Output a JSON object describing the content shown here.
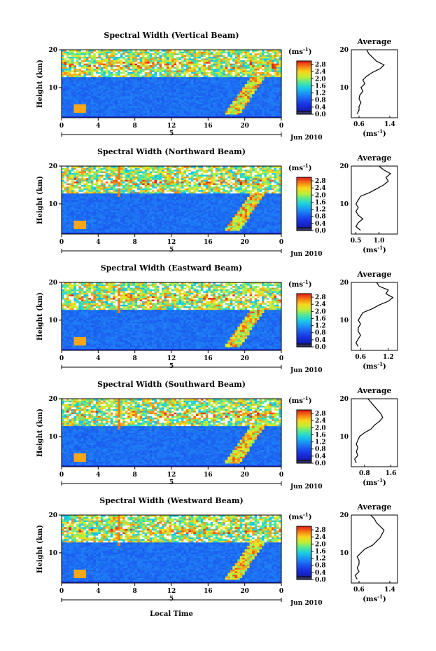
{
  "figure": {
    "xlabel": "Local Time",
    "date_label": "Jun 2010",
    "x_tick_labels": [
      "0",
      "4",
      "8",
      "12",
      "16",
      "20",
      "0"
    ],
    "bottom_axis_label": "5",
    "y_tick_labels": [
      "20",
      "10"
    ],
    "ylabel": "Height (km)",
    "colorbar_unit": "(ms",
    "colorbar_unit_exp": "-1",
    "colorbar_unit_close": ")",
    "colorbar_ticks": [
      "2.8",
      "2.4",
      "2.0",
      "1.6",
      "1.2",
      "0.8",
      "0.4",
      "0.0"
    ],
    "profile_title": "Average",
    "profile_unit": "(ms",
    "profile_unit_exp": "-1",
    "profile_unit_close": ")"
  },
  "chart_data": [
    {
      "type": "heatmap",
      "title": "Spectral Width (Vertical Beam)",
      "xlabel": "Local Time",
      "ylabel": "Height (km)",
      "xlim": [
        0,
        24
      ],
      "ylim": [
        2,
        20
      ],
      "colorbar": {
        "label": "(ms-1)",
        "range": [
          0.0,
          3.0
        ]
      },
      "profile": {
        "title": "Average",
        "xlabel": "(ms-1)",
        "xlim": [
          0.4,
          1.6
        ],
        "xticks": [
          "0.6",
          "1.4"
        ],
        "height_km": [
          3,
          4,
          5,
          6,
          7,
          8,
          9,
          10,
          11,
          12,
          13,
          14,
          15,
          16,
          17,
          18,
          19,
          20
        ],
        "values": [
          0.55,
          0.6,
          0.6,
          0.65,
          0.6,
          0.62,
          0.7,
          0.65,
          0.75,
          0.7,
          0.8,
          0.95,
          1.15,
          1.25,
          1.05,
          0.95,
          0.85,
          0.8
        ]
      }
    },
    {
      "type": "heatmap",
      "title": "Spectral Width (Northward Beam)",
      "xlabel": "Local Time",
      "ylabel": "Height (km)",
      "xlim": [
        0,
        24
      ],
      "ylim": [
        2,
        20
      ],
      "colorbar": {
        "label": "(ms-1)",
        "range": [
          0.0,
          3.0
        ]
      },
      "profile": {
        "title": "Average",
        "xlabel": "(ms-1)",
        "xlim": [
          0.4,
          1.4
        ],
        "xticks": [
          "0.5",
          "1.0"
        ],
        "height_km": [
          3,
          4,
          5,
          6,
          7,
          8,
          9,
          10,
          11,
          12,
          13,
          14,
          15,
          16,
          17,
          18,
          19,
          20
        ],
        "values": [
          0.6,
          0.5,
          0.55,
          0.65,
          0.55,
          0.5,
          0.55,
          0.5,
          0.55,
          0.6,
          0.8,
          0.95,
          1.1,
          1.2,
          1.15,
          1.25,
          1.1,
          1.0
        ]
      }
    },
    {
      "type": "heatmap",
      "title": "Spectral Width (Eastward Beam)",
      "xlabel": "Local Time",
      "ylabel": "Height (km)",
      "xlim": [
        0,
        24
      ],
      "ylim": [
        2,
        20
      ],
      "colorbar": {
        "label": "(ms-1)",
        "range": [
          0.0,
          3.0
        ]
      },
      "profile": {
        "title": "Average",
        "xlabel": "(ms-1)",
        "xlim": [
          0.4,
          1.4
        ],
        "xticks": [
          "0.6",
          "1.2"
        ],
        "height_km": [
          3,
          4,
          5,
          6,
          7,
          8,
          9,
          10,
          11,
          12,
          13,
          14,
          15,
          16,
          17,
          18,
          19,
          20
        ],
        "values": [
          0.55,
          0.5,
          0.55,
          0.6,
          0.55,
          0.55,
          0.6,
          0.55,
          0.6,
          0.65,
          0.85,
          1.0,
          1.2,
          1.3,
          1.15,
          1.2,
          1.0,
          0.95
        ]
      }
    },
    {
      "type": "heatmap",
      "title": "Spectral Width (Southward Beam)",
      "xlabel": "Local Time",
      "ylabel": "Height (km)",
      "xlim": [
        0,
        24
      ],
      "ylim": [
        2,
        20
      ],
      "colorbar": {
        "label": "(ms-1)",
        "range": [
          0.0,
          3.0
        ]
      },
      "profile": {
        "title": "Average",
        "xlabel": "(ms-1)",
        "xlim": [
          0.4,
          1.8
        ],
        "xticks": [
          "0.8",
          "1.6"
        ],
        "height_km": [
          3,
          4,
          5,
          6,
          7,
          8,
          9,
          10,
          11,
          12,
          13,
          14,
          15,
          16,
          17,
          18,
          19,
          20
        ],
        "values": [
          0.55,
          0.5,
          0.6,
          0.55,
          0.6,
          0.55,
          0.6,
          0.65,
          0.8,
          1.0,
          1.1,
          1.25,
          1.35,
          1.3,
          1.2,
          1.1,
          1.0,
          0.9
        ]
      }
    },
    {
      "type": "heatmap",
      "title": "Spectral Width (Westward Beam)",
      "xlabel": "Local Time",
      "ylabel": "Height (km)",
      "xlim": [
        0,
        24
      ],
      "ylim": [
        2,
        20
      ],
      "colorbar": {
        "label": "(ms-1)",
        "range": [
          0.0,
          3.0
        ]
      },
      "profile": {
        "title": "Average",
        "xlabel": "(ms-1)",
        "xlim": [
          0.4,
          1.6
        ],
        "xticks": [
          "0.6",
          "1.4"
        ],
        "height_km": [
          3,
          4,
          5,
          6,
          7,
          8,
          9,
          10,
          11,
          12,
          13,
          14,
          15,
          16,
          17,
          18,
          19,
          20
        ],
        "values": [
          0.55,
          0.5,
          0.6,
          0.55,
          0.6,
          0.6,
          0.55,
          0.65,
          0.75,
          0.95,
          1.05,
          1.15,
          1.2,
          1.25,
          1.15,
          1.05,
          1.0,
          0.9
        ]
      }
    }
  ]
}
